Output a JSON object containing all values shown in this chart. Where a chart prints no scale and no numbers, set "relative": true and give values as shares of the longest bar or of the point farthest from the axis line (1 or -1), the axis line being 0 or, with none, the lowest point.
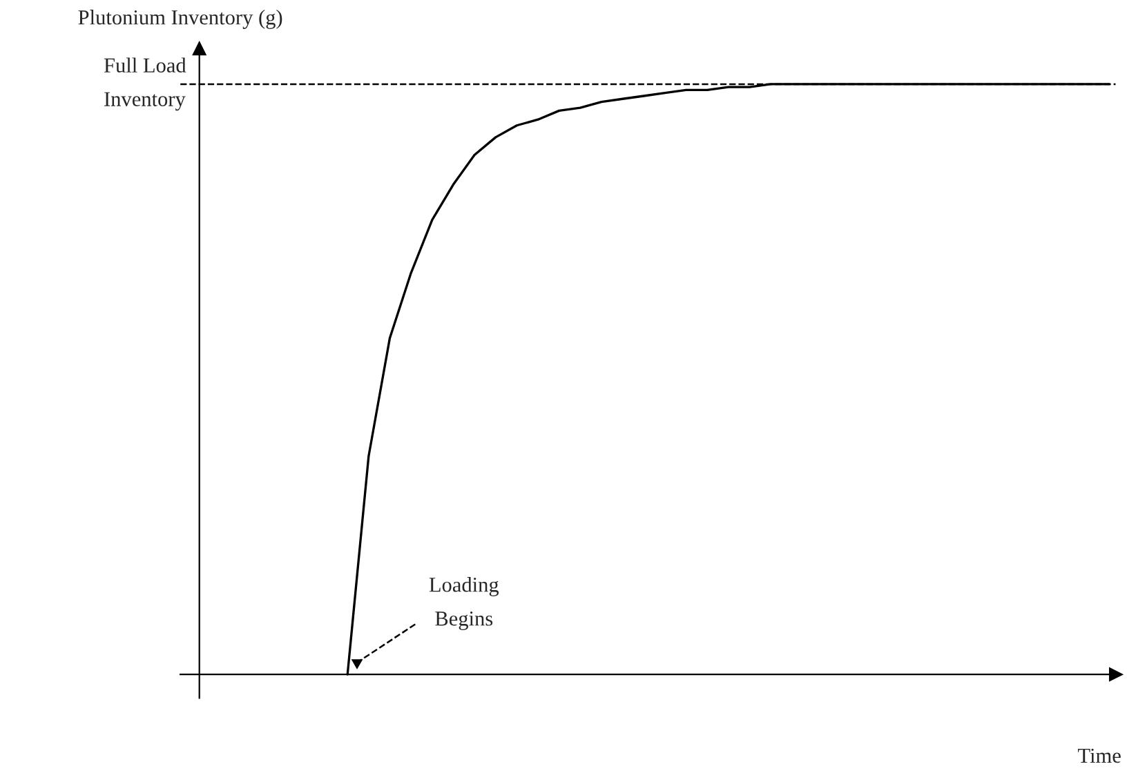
{
  "chart_data": {
    "type": "line",
    "relative": true,
    "ylabel": "Plutonium Inventory (g)",
    "xlabel": "Time",
    "categories": [
      null,
      null,
      null,
      null,
      null,
      null,
      null,
      null,
      null,
      null,
      null,
      null,
      null,
      null,
      null,
      null,
      null,
      null,
      null,
      null,
      null,
      null,
      null,
      null,
      null,
      null,
      null,
      null,
      null,
      null,
      null,
      null,
      null,
      null,
      null,
      null,
      null,
      null,
      null,
      null,
      null,
      null,
      null,
      null
    ],
    "series": [
      {
        "color": "#000000",
        "values": [
          null,
          null,
          null,
          null,
          null,
          null,
          null,
          0,
          0.37,
          0.57,
          0.68,
          0.77,
          0.83,
          0.88,
          0.91,
          0.93,
          0.94,
          0.955,
          0.96,
          0.97,
          0.975,
          0.98,
          0.985,
          0.99,
          0.99,
          0.995,
          0.995,
          1.0,
          1.0,
          1.0,
          1.0,
          1.0,
          1.0,
          1.0,
          1.0,
          1.0,
          1.0,
          1.0,
          1.0,
          1.0,
          1.0,
          1.0,
          1.0,
          1.0
        ]
      }
    ],
    "ref_lines": [
      {
        "axis": "y",
        "value": 1.0,
        "label": "Full Load\nInventory",
        "color": "#000000",
        "line_style": "dashed"
      }
    ],
    "annotations": [
      "Loading\nBegins"
    ]
  }
}
